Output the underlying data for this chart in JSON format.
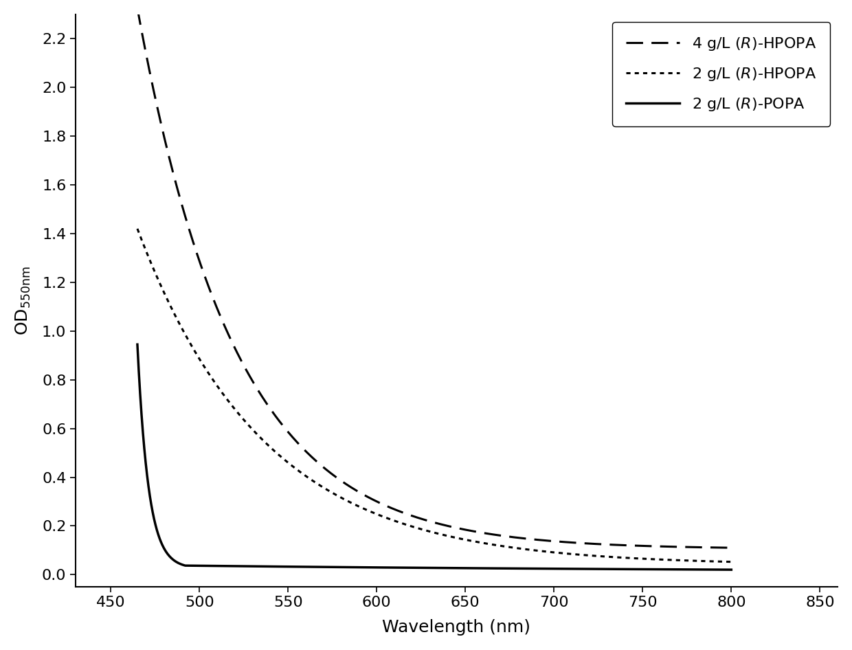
{
  "xlabel": "Wavelength (nm)",
  "ylabel": "OD",
  "ylabel_sub": "550nm",
  "xlim": [
    430,
    860
  ],
  "ylim": [
    -0.05,
    2.3
  ],
  "xticks": [
    450,
    500,
    550,
    600,
    650,
    700,
    750,
    800,
    850
  ],
  "yticks": [
    0.0,
    0.2,
    0.4,
    0.6,
    0.8,
    1.0,
    1.2,
    1.4,
    1.6,
    1.8,
    2.0,
    2.2
  ],
  "background_color": "#ffffff",
  "line_color": "#000000",
  "series": [
    {
      "label": "4 g/L (R)-HPOPA",
      "linestyle": "dashed",
      "linewidth": 2.2,
      "x_start": 465,
      "peak": 2.22,
      "decay_rate": 0.018,
      "baseline": 0.105,
      "color": "#000000",
      "second_decay": false
    },
    {
      "label": "2 g/L (R)-HPOPA",
      "linestyle": "dotted",
      "linewidth": 2.2,
      "x_start": 465,
      "peak": 1.38,
      "decay_rate": 0.014,
      "baseline": 0.04,
      "color": "#000000",
      "second_decay": false
    },
    {
      "label": "2 g/L (R)-POPA",
      "linestyle": "solid",
      "linewidth": 2.5,
      "x_start": 465,
      "peak": 0.92,
      "decay_rate": 0.16,
      "baseline": 0.025,
      "color": "#000000",
      "second_decay": true,
      "x_break": 492,
      "slow_rate": 0.0028,
      "slow_baseline": 0.008
    }
  ],
  "legend_loc": "upper right",
  "fontsize_label": 18,
  "fontsize_tick": 16,
  "fontsize_legend": 16,
  "dashed_pattern": [
    8,
    4
  ],
  "dotted_pattern": [
    2,
    2
  ]
}
